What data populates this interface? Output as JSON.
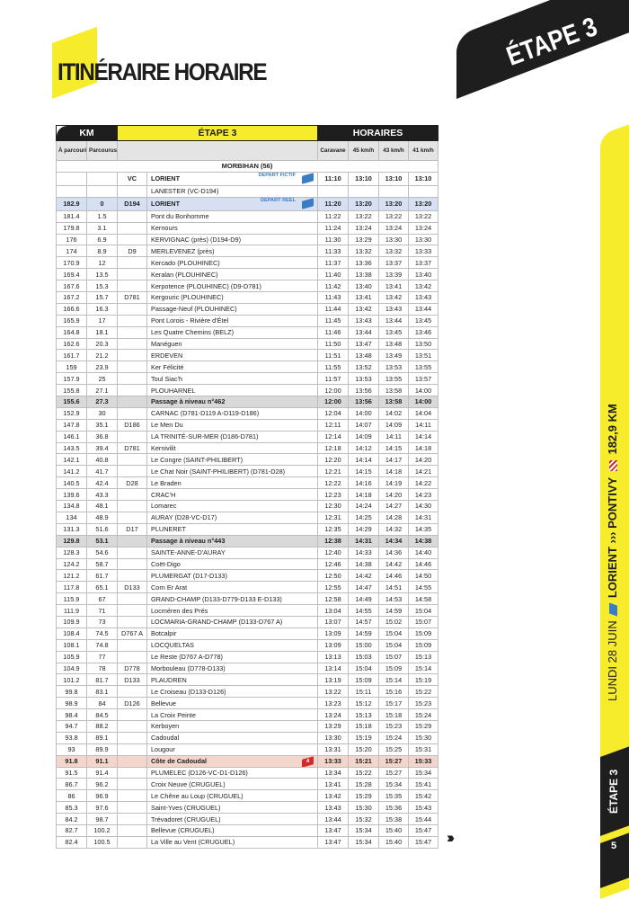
{
  "page_title": "ITINÉRAIRE HORAIRE",
  "badge": "ÉTAPE 3",
  "table": {
    "group_headers": {
      "km": "KM",
      "stage": "ÉTAPE 3",
      "times": "HORAIRES"
    },
    "columns": [
      "À parcourir",
      "Parcourus",
      "",
      "",
      "Caravane",
      "45 km/h",
      "43 km/h",
      "41 km/h"
    ],
    "region": "MORBIHAN (56)",
    "rows": [
      {
        "c": [
          "",
          "",
          "VC",
          "LORIENT",
          "11:10",
          "13:10",
          "13:10",
          "13:10"
        ],
        "style": "bold depart",
        "tag": "DÉPART FICTIF",
        "icon": "start-flag"
      },
      {
        "c": [
          "",
          "",
          "",
          "LANESTER (VC-D194)",
          "",
          "",
          "",
          ""
        ]
      },
      {
        "c": [
          "182.9",
          "0",
          "D194",
          "LORIENT",
          "11:20",
          "13:20",
          "13:20",
          "13:20"
        ],
        "style": "bold blue depart",
        "tag": "DÉPART RÉEL",
        "icon": "start-flag"
      },
      {
        "c": [
          "181.4",
          "1.5",
          "",
          "Pont du Bonhomme",
          "11:22",
          "13:22",
          "13:22",
          "13:22"
        ]
      },
      {
        "c": [
          "179.8",
          "3.1",
          "",
          "Kernours",
          "11:24",
          "13:24",
          "13:24",
          "13:24"
        ]
      },
      {
        "c": [
          "176",
          "6.9",
          "",
          "KERVIGNAC (près) (D194-D9)",
          "11:30",
          "13:29",
          "13:30",
          "13:30"
        ]
      },
      {
        "c": [
          "174",
          "8.9",
          "D9",
          "MERLEVENEZ (près)",
          "11:33",
          "13:32",
          "13:32",
          "13:33"
        ]
      },
      {
        "c": [
          "170.9",
          "12",
          "",
          "Kercado (PLOUHINEC)",
          "11:37",
          "13:36",
          "13:37",
          "13:37"
        ]
      },
      {
        "c": [
          "169.4",
          "13.5",
          "",
          "Keralan (PLOUHINEC)",
          "11:40",
          "13:38",
          "13:39",
          "13:40"
        ]
      },
      {
        "c": [
          "167.6",
          "15.3",
          "",
          "Kerpotence (PLOUHINEC) (D9-D781)",
          "11:42",
          "13:40",
          "13:41",
          "13:42"
        ]
      },
      {
        "c": [
          "167.2",
          "15.7",
          "D781",
          "Kergouric (PLOUHINEC)",
          "11:43",
          "13:41",
          "13:42",
          "13:43"
        ]
      },
      {
        "c": [
          "166.6",
          "16.3",
          "",
          "Passage-Neuf (PLOUHINEC)",
          "11:44",
          "13:42",
          "13:43",
          "13:44"
        ]
      },
      {
        "c": [
          "165.9",
          "17",
          "",
          "Pont Lorois - Rivière d'Étel",
          "11:45",
          "13:43",
          "13:44",
          "13:45"
        ]
      },
      {
        "c": [
          "164.8",
          "18.1",
          "",
          "Les Quatre Chemins (BELZ)",
          "11:46",
          "13:44",
          "13:45",
          "13:46"
        ]
      },
      {
        "c": [
          "162.6",
          "20.3",
          "",
          "Manéguen",
          "11:50",
          "13:47",
          "13:48",
          "13:50"
        ]
      },
      {
        "c": [
          "161.7",
          "21.2",
          "",
          "ERDEVEN",
          "11:51",
          "13:48",
          "13:49",
          "13:51"
        ]
      },
      {
        "c": [
          "159",
          "23.9",
          "",
          "Ker Félicité",
          "11:55",
          "13:52",
          "13:53",
          "13:55"
        ]
      },
      {
        "c": [
          "157.9",
          "25",
          "",
          "Toul Siac'h",
          "11:57",
          "13:53",
          "13:55",
          "13:57"
        ]
      },
      {
        "c": [
          "155.8",
          "27.1",
          "",
          "PLOUHARNEL",
          "12:00",
          "13:56",
          "13:58",
          "14:00"
        ]
      },
      {
        "c": [
          "155.6",
          "27.3",
          "",
          "Passage à niveau n°462",
          "12:00",
          "13:56",
          "13:58",
          "14:00"
        ],
        "style": "bold grey"
      },
      {
        "c": [
          "152.9",
          "30",
          "",
          "CARNAC (D781-D119 A-D119-D186)",
          "12:04",
          "14:00",
          "14:02",
          "14:04"
        ]
      },
      {
        "c": [
          "147.8",
          "35.1",
          "D186",
          "Le Men Du",
          "12:11",
          "14:07",
          "14:09",
          "14:11"
        ]
      },
      {
        "c": [
          "146.1",
          "36.8",
          "",
          "LA TRINITÉ-SUR-MER (D186-D781)",
          "12:14",
          "14:09",
          "14:11",
          "14:14"
        ]
      },
      {
        "c": [
          "143.5",
          "39.4",
          "D781",
          "Kernivilit",
          "12:18",
          "14:12",
          "14:15",
          "14:18"
        ]
      },
      {
        "c": [
          "142.1",
          "40.8",
          "",
          "Le Congre (SAINT-PHILIBERT)",
          "12:20",
          "14:14",
          "14:17",
          "14:20"
        ]
      },
      {
        "c": [
          "141.2",
          "41.7",
          "",
          "Le Chat Noir (SAINT-PHILIBERT) (D781-D28)",
          "12:21",
          "14:15",
          "14:18",
          "14:21"
        ]
      },
      {
        "c": [
          "140.5",
          "42.4",
          "D28",
          "Le Braden",
          "12:22",
          "14:16",
          "14:19",
          "14:22"
        ]
      },
      {
        "c": [
          "139.6",
          "43.3",
          "",
          "CRAC'H",
          "12:23",
          "14:18",
          "14:20",
          "14:23"
        ]
      },
      {
        "c": [
          "134.8",
          "48.1",
          "",
          "Lomarec",
          "12:30",
          "14:24",
          "14:27",
          "14:30"
        ]
      },
      {
        "c": [
          "134",
          "48.9",
          "",
          "AURAY (D28-VC-D17)",
          "12:31",
          "14:25",
          "14:28",
          "14:31"
        ]
      },
      {
        "c": [
          "131.3",
          "51.6",
          "D17",
          "PLUNERET",
          "12:35",
          "14:29",
          "14:32",
          "14:35"
        ]
      },
      {
        "c": [
          "129.8",
          "53.1",
          "",
          "Passage à niveau n°443",
          "12:38",
          "14:31",
          "14:34",
          "14:38"
        ],
        "style": "bold grey"
      },
      {
        "c": [
          "128.3",
          "54.6",
          "",
          "SAINTE-ANNE-D'AURAY",
          "12:40",
          "14:33",
          "14:36",
          "14:40"
        ]
      },
      {
        "c": [
          "124.2",
          "58.7",
          "",
          "Coët-Digo",
          "12:46",
          "14:38",
          "14:42",
          "14:46"
        ]
      },
      {
        "c": [
          "121.2",
          "61.7",
          "",
          "PLUMERGAT (D17-D133)",
          "12:50",
          "14:42",
          "14:46",
          "14:50"
        ]
      },
      {
        "c": [
          "117.8",
          "65.1",
          "D133",
          "Corn Er Arat",
          "12:55",
          "14:47",
          "14:51",
          "14:55"
        ]
      },
      {
        "c": [
          "115.9",
          "67",
          "",
          "GRAND-CHAMP (D133-D779-D133 E-D133)",
          "12:58",
          "14:49",
          "14:53",
          "14:58"
        ]
      },
      {
        "c": [
          "111.9",
          "71",
          "",
          "Locméren des Prés",
          "13:04",
          "14:55",
          "14:59",
          "15:04"
        ]
      },
      {
        "c": [
          "109.9",
          "73",
          "",
          "LOCMARIA-GRAND-CHAMP (D133-D767 A)",
          "13:07",
          "14:57",
          "15:02",
          "15:07"
        ]
      },
      {
        "c": [
          "108.4",
          "74.5",
          "D767 A",
          "Botcalpir",
          "13:09",
          "14:59",
          "15:04",
          "15:09"
        ]
      },
      {
        "c": [
          "108.1",
          "74.8",
          "",
          "LOCQUELTAS",
          "13:09",
          "15:00",
          "15:04",
          "15:09"
        ]
      },
      {
        "c": [
          "105.9",
          "77",
          "",
          "Le Reste (D767 A-D778)",
          "13:13",
          "15:03",
          "15:07",
          "15:13"
        ]
      },
      {
        "c": [
          "104.9",
          "78",
          "D778",
          "Morbouleau (D778-D133)",
          "13:14",
          "15:04",
          "15:09",
          "15:14"
        ]
      },
      {
        "c": [
          "101.2",
          "81.7",
          "D133",
          "PLAUDREN",
          "13:19",
          "15:09",
          "15:14",
          "15:19"
        ]
      },
      {
        "c": [
          "99.8",
          "83.1",
          "",
          "Le Croiseau (D133-D126)",
          "13:22",
          "15:11",
          "15:16",
          "15:22"
        ]
      },
      {
        "c": [
          "98.9",
          "84",
          "D126",
          "Bellevue",
          "13:23",
          "15:12",
          "15:17",
          "15:23"
        ]
      },
      {
        "c": [
          "98.4",
          "84.5",
          "",
          "La Croix Peinte",
          "13:24",
          "15:13",
          "15:18",
          "15:24"
        ]
      },
      {
        "c": [
          "94.7",
          "88.2",
          "",
          "Kerboyen",
          "13:29",
          "15:18",
          "15:23",
          "15:29"
        ]
      },
      {
        "c": [
          "93.8",
          "89.1",
          "",
          "Cadoudal",
          "13:30",
          "15:19",
          "15:24",
          "15:30"
        ]
      },
      {
        "c": [
          "93",
          "89.9",
          "",
          "Lougour",
          "13:31",
          "15:20",
          "15:25",
          "15:31"
        ]
      },
      {
        "c": [
          "91.8",
          "91.1",
          "",
          "Côte de Cadoudal",
          "13:33",
          "15:21",
          "15:27",
          "15:33"
        ],
        "style": "bold pink",
        "icon": "climb-flag",
        "icon_label": "4"
      },
      {
        "c": [
          "91.5",
          "91.4",
          "",
          "PLUMELEC (D126-VC-D1-D126)",
          "13:34",
          "15:22",
          "15:27",
          "15:34"
        ]
      },
      {
        "c": [
          "86.7",
          "96.2",
          "",
          "Croix Neuve (CRUGUEL)",
          "13:41",
          "15:28",
          "15:34",
          "15:41"
        ]
      },
      {
        "c": [
          "86",
          "96.9",
          "",
          "Le Chêne au Loup (CRUGUEL)",
          "13:42",
          "15:29",
          "15:35",
          "15:42"
        ]
      },
      {
        "c": [
          "85.3",
          "97.6",
          "",
          "Saint-Yves (CRUGUEL)",
          "13:43",
          "15:30",
          "15:36",
          "15:43"
        ]
      },
      {
        "c": [
          "84.2",
          "98.7",
          "",
          "Trévadoret (CRUGUEL)",
          "13:44",
          "15:32",
          "15:38",
          "15:44"
        ]
      },
      {
        "c": [
          "82.7",
          "100.2",
          "",
          "Bellevue (CRUGUEL)",
          "13:47",
          "15:34",
          "15:40",
          "15:47"
        ]
      },
      {
        "c": [
          "82.4",
          "100.5",
          "",
          "La Ville au Vent (CRUGUEL)",
          "13:47",
          "15:34",
          "15:40",
          "15:47"
        ]
      }
    ]
  },
  "side": {
    "date": "LUNDI 28 JUIN",
    "from": "LORIENT",
    "sep": "›››",
    "to": "PONTIVY",
    "distance": "182,9 KM",
    "stage": "ÉTAPE 3",
    "page": "5"
  },
  "next_arrow": "›››",
  "colors": {
    "yellow": "#f6ec2c",
    "black": "#1e1e1e",
    "blue_row": "#d6e0f2",
    "grey_row": "#d9d9d9",
    "pink_row": "#f4d5cc",
    "accent_blue": "#3b7dc4",
    "accent_red": "#d22a2a"
  }
}
